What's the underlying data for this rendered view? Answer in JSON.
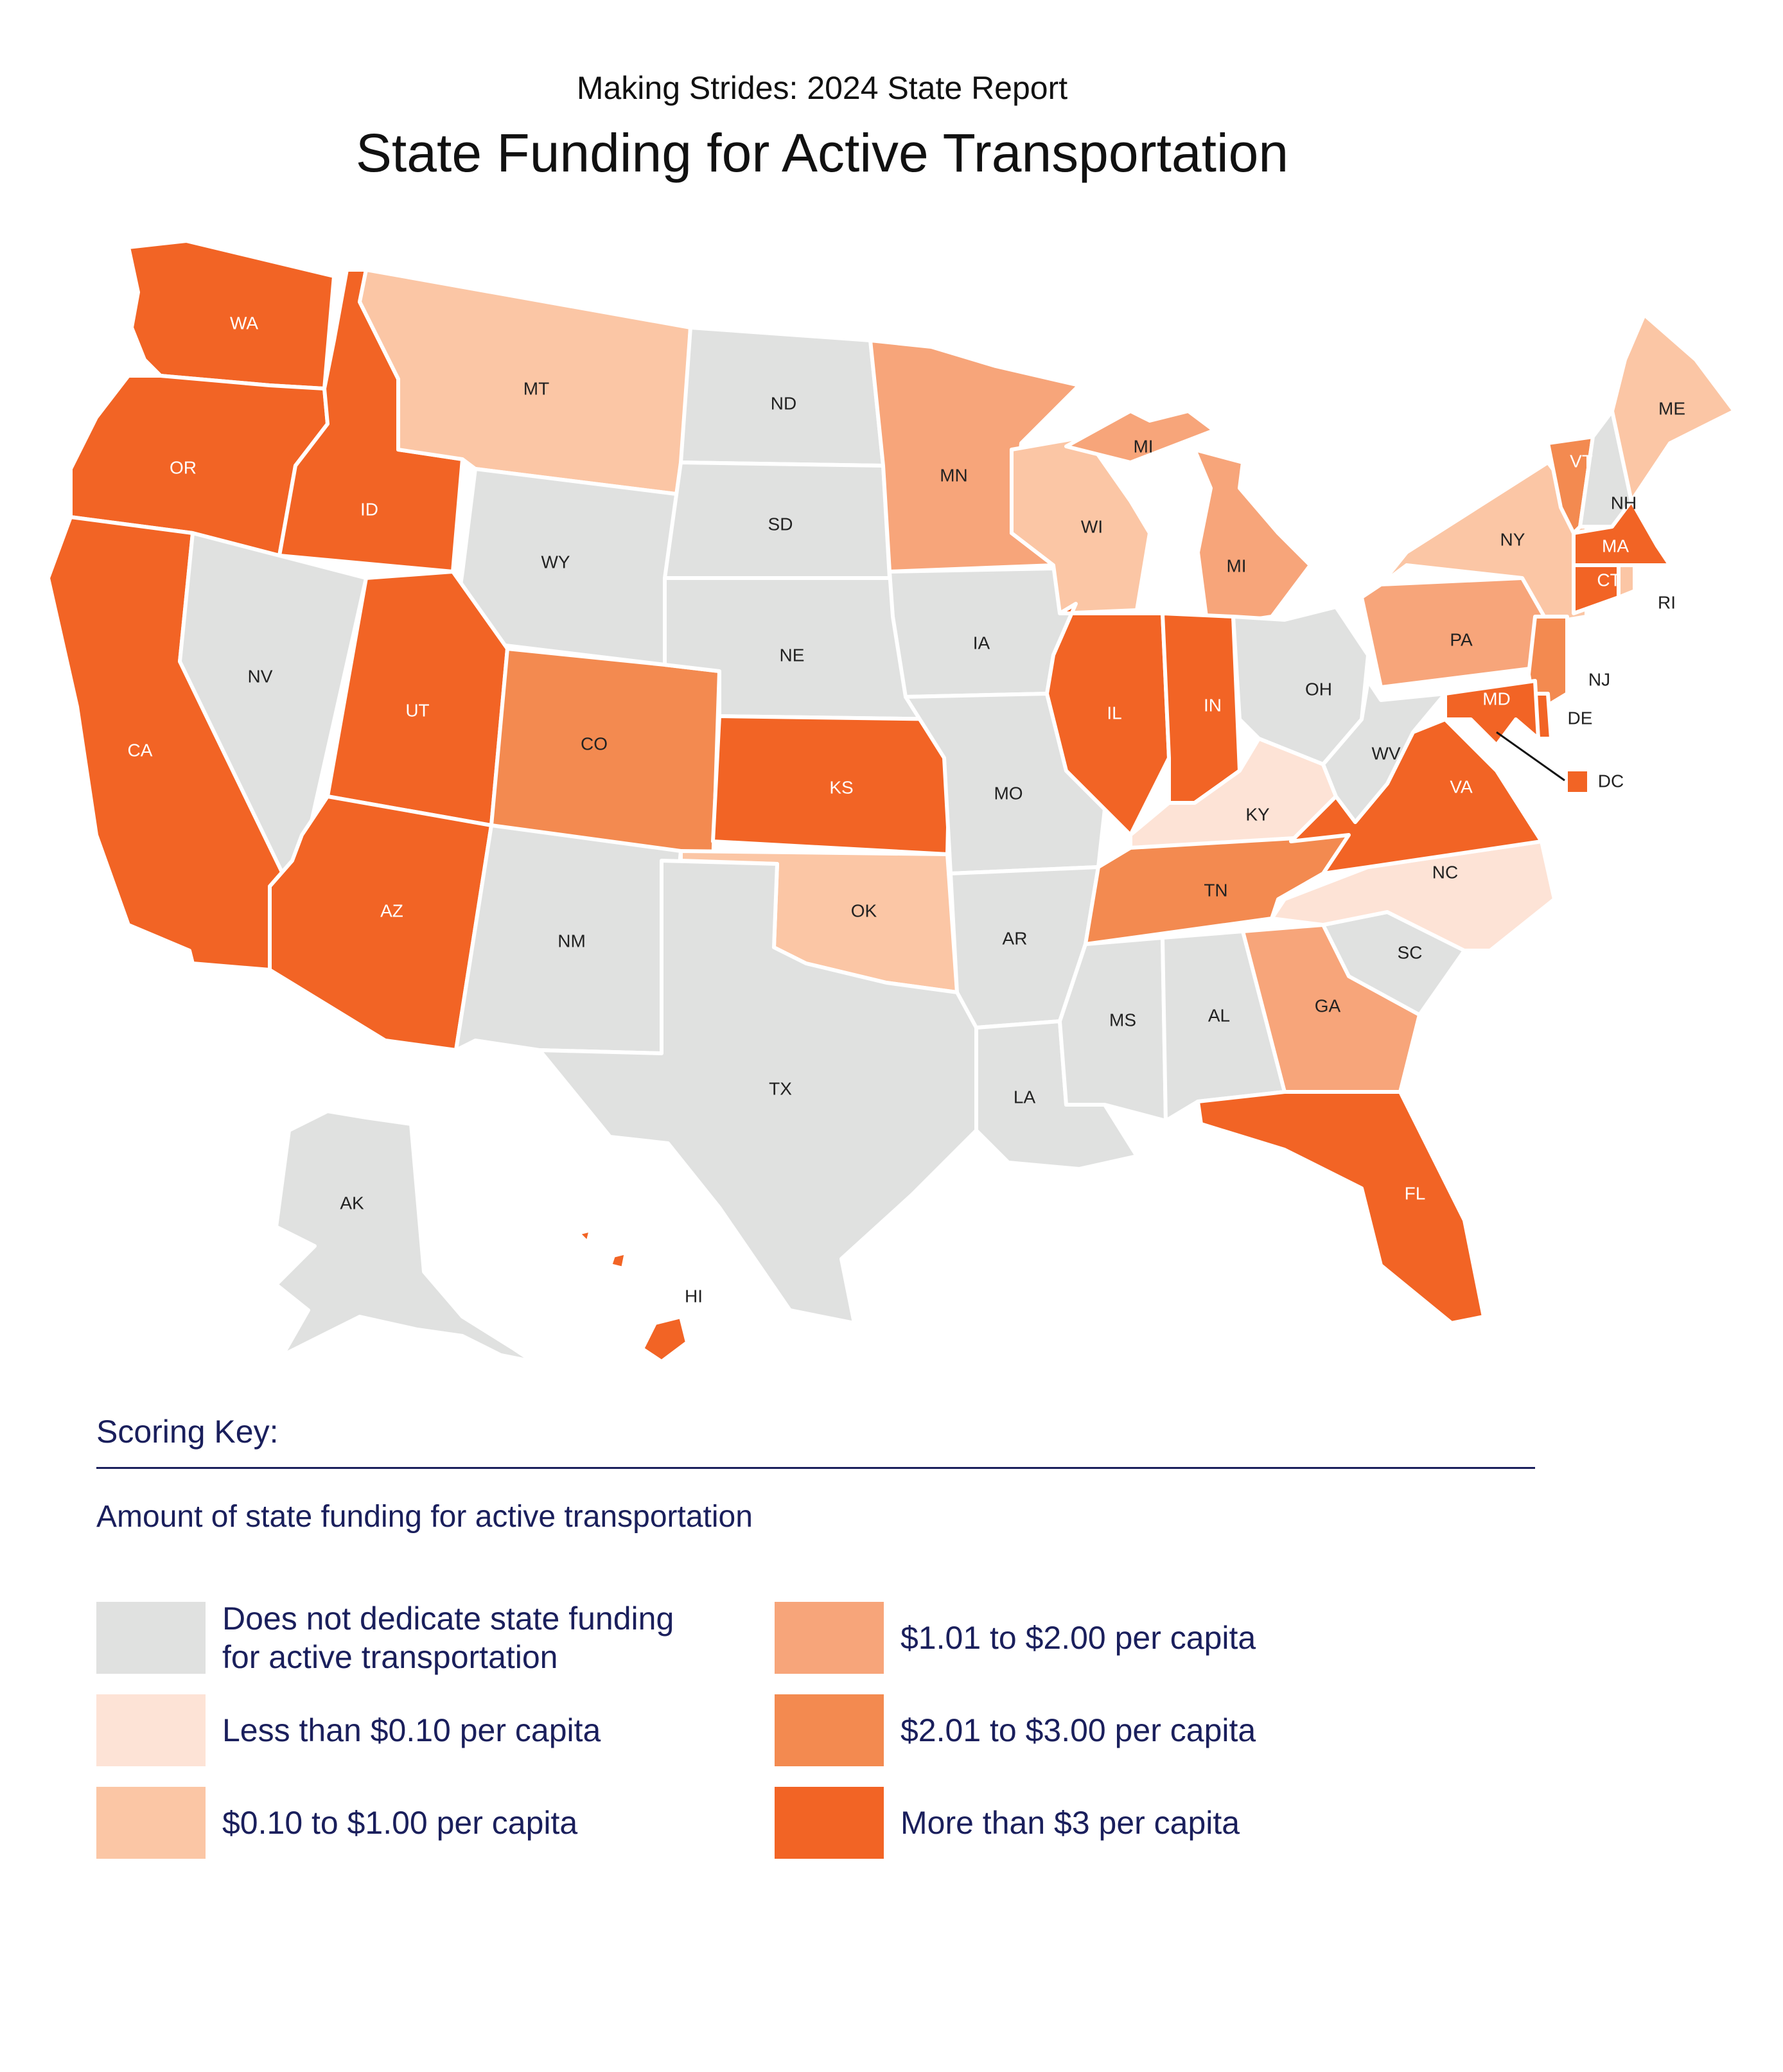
{
  "header": {
    "subtitle": "Making Strides:  2024 State Report",
    "title": "State Funding for Active Transportation"
  },
  "colors": {
    "none": "#e0e1e0",
    "less_010": "#fde3d6",
    "010_100": "#fbc6a5",
    "101_200": "#f7a57a",
    "201_300": "#f38a50",
    "more_3": "#f26425"
  },
  "states": [
    {
      "abbr": "WA",
      "tier": "more_3"
    },
    {
      "abbr": "OR",
      "tier": "more_3"
    },
    {
      "abbr": "CA",
      "tier": "more_3"
    },
    {
      "abbr": "ID",
      "tier": "more_3"
    },
    {
      "abbr": "NV",
      "tier": "none"
    },
    {
      "abbr": "MT",
      "tier": "010_100"
    },
    {
      "abbr": "WY",
      "tier": "none"
    },
    {
      "abbr": "UT",
      "tier": "more_3"
    },
    {
      "abbr": "AZ",
      "tier": "more_3"
    },
    {
      "abbr": "CO",
      "tier": "201_300"
    },
    {
      "abbr": "NM",
      "tier": "none"
    },
    {
      "abbr": "ND",
      "tier": "none"
    },
    {
      "abbr": "SD",
      "tier": "none"
    },
    {
      "abbr": "NE",
      "tier": "none"
    },
    {
      "abbr": "KS",
      "tier": "more_3"
    },
    {
      "abbr": "OK",
      "tier": "010_100"
    },
    {
      "abbr": "TX",
      "tier": "none"
    },
    {
      "abbr": "MN",
      "tier": "101_200"
    },
    {
      "abbr": "IA",
      "tier": "none"
    },
    {
      "abbr": "MO",
      "tier": "none"
    },
    {
      "abbr": "AR",
      "tier": "none"
    },
    {
      "abbr": "LA",
      "tier": "none"
    },
    {
      "abbr": "WI",
      "tier": "010_100"
    },
    {
      "abbr": "IL",
      "tier": "more_3"
    },
    {
      "abbr": "MI",
      "tier": "101_200"
    },
    {
      "abbr": "IN",
      "tier": "more_3"
    },
    {
      "abbr": "OH",
      "tier": "none"
    },
    {
      "abbr": "KY",
      "tier": "less_010"
    },
    {
      "abbr": "TN",
      "tier": "201_300"
    },
    {
      "abbr": "MS",
      "tier": "none"
    },
    {
      "abbr": "AL",
      "tier": "none"
    },
    {
      "abbr": "GA",
      "tier": "101_200"
    },
    {
      "abbr": "FL",
      "tier": "more_3"
    },
    {
      "abbr": "SC",
      "tier": "none"
    },
    {
      "abbr": "NC",
      "tier": "less_010"
    },
    {
      "abbr": "VA",
      "tier": "more_3"
    },
    {
      "abbr": "WV",
      "tier": "none"
    },
    {
      "abbr": "PA",
      "tier": "101_200"
    },
    {
      "abbr": "NY",
      "tier": "010_100"
    },
    {
      "abbr": "VT",
      "tier": "201_300"
    },
    {
      "abbr": "NH",
      "tier": "none"
    },
    {
      "abbr": "ME",
      "tier": "010_100"
    },
    {
      "abbr": "MA",
      "tier": "more_3"
    },
    {
      "abbr": "RI",
      "tier": "010_100"
    },
    {
      "abbr": "CT",
      "tier": "more_3"
    },
    {
      "abbr": "NJ",
      "tier": "201_300"
    },
    {
      "abbr": "DE",
      "tier": "more_3"
    },
    {
      "abbr": "MD",
      "tier": "more_3"
    },
    {
      "abbr": "DC",
      "tier": "more_3"
    },
    {
      "abbr": "AK",
      "tier": "none"
    },
    {
      "abbr": "HI",
      "tier": "more_3"
    }
  ],
  "key": {
    "title": "Scoring Key:",
    "subtitle": "Amount of state funding for active transportation",
    "items": [
      {
        "tier": "none",
        "label": "Does not dedicate state funding for active transportation"
      },
      {
        "tier": "less_010",
        "label": "Less than $0.10 per capita"
      },
      {
        "tier": "010_100",
        "label": "$0.10 to $1.00 per capita"
      },
      {
        "tier": "101_200",
        "label": "$1.01 to $2.00 per capita"
      },
      {
        "tier": "201_300",
        "label": "$2.01 to $3.00 per capita"
      },
      {
        "tier": "more_3",
        "label": "More than $3 per capita"
      }
    ]
  }
}
